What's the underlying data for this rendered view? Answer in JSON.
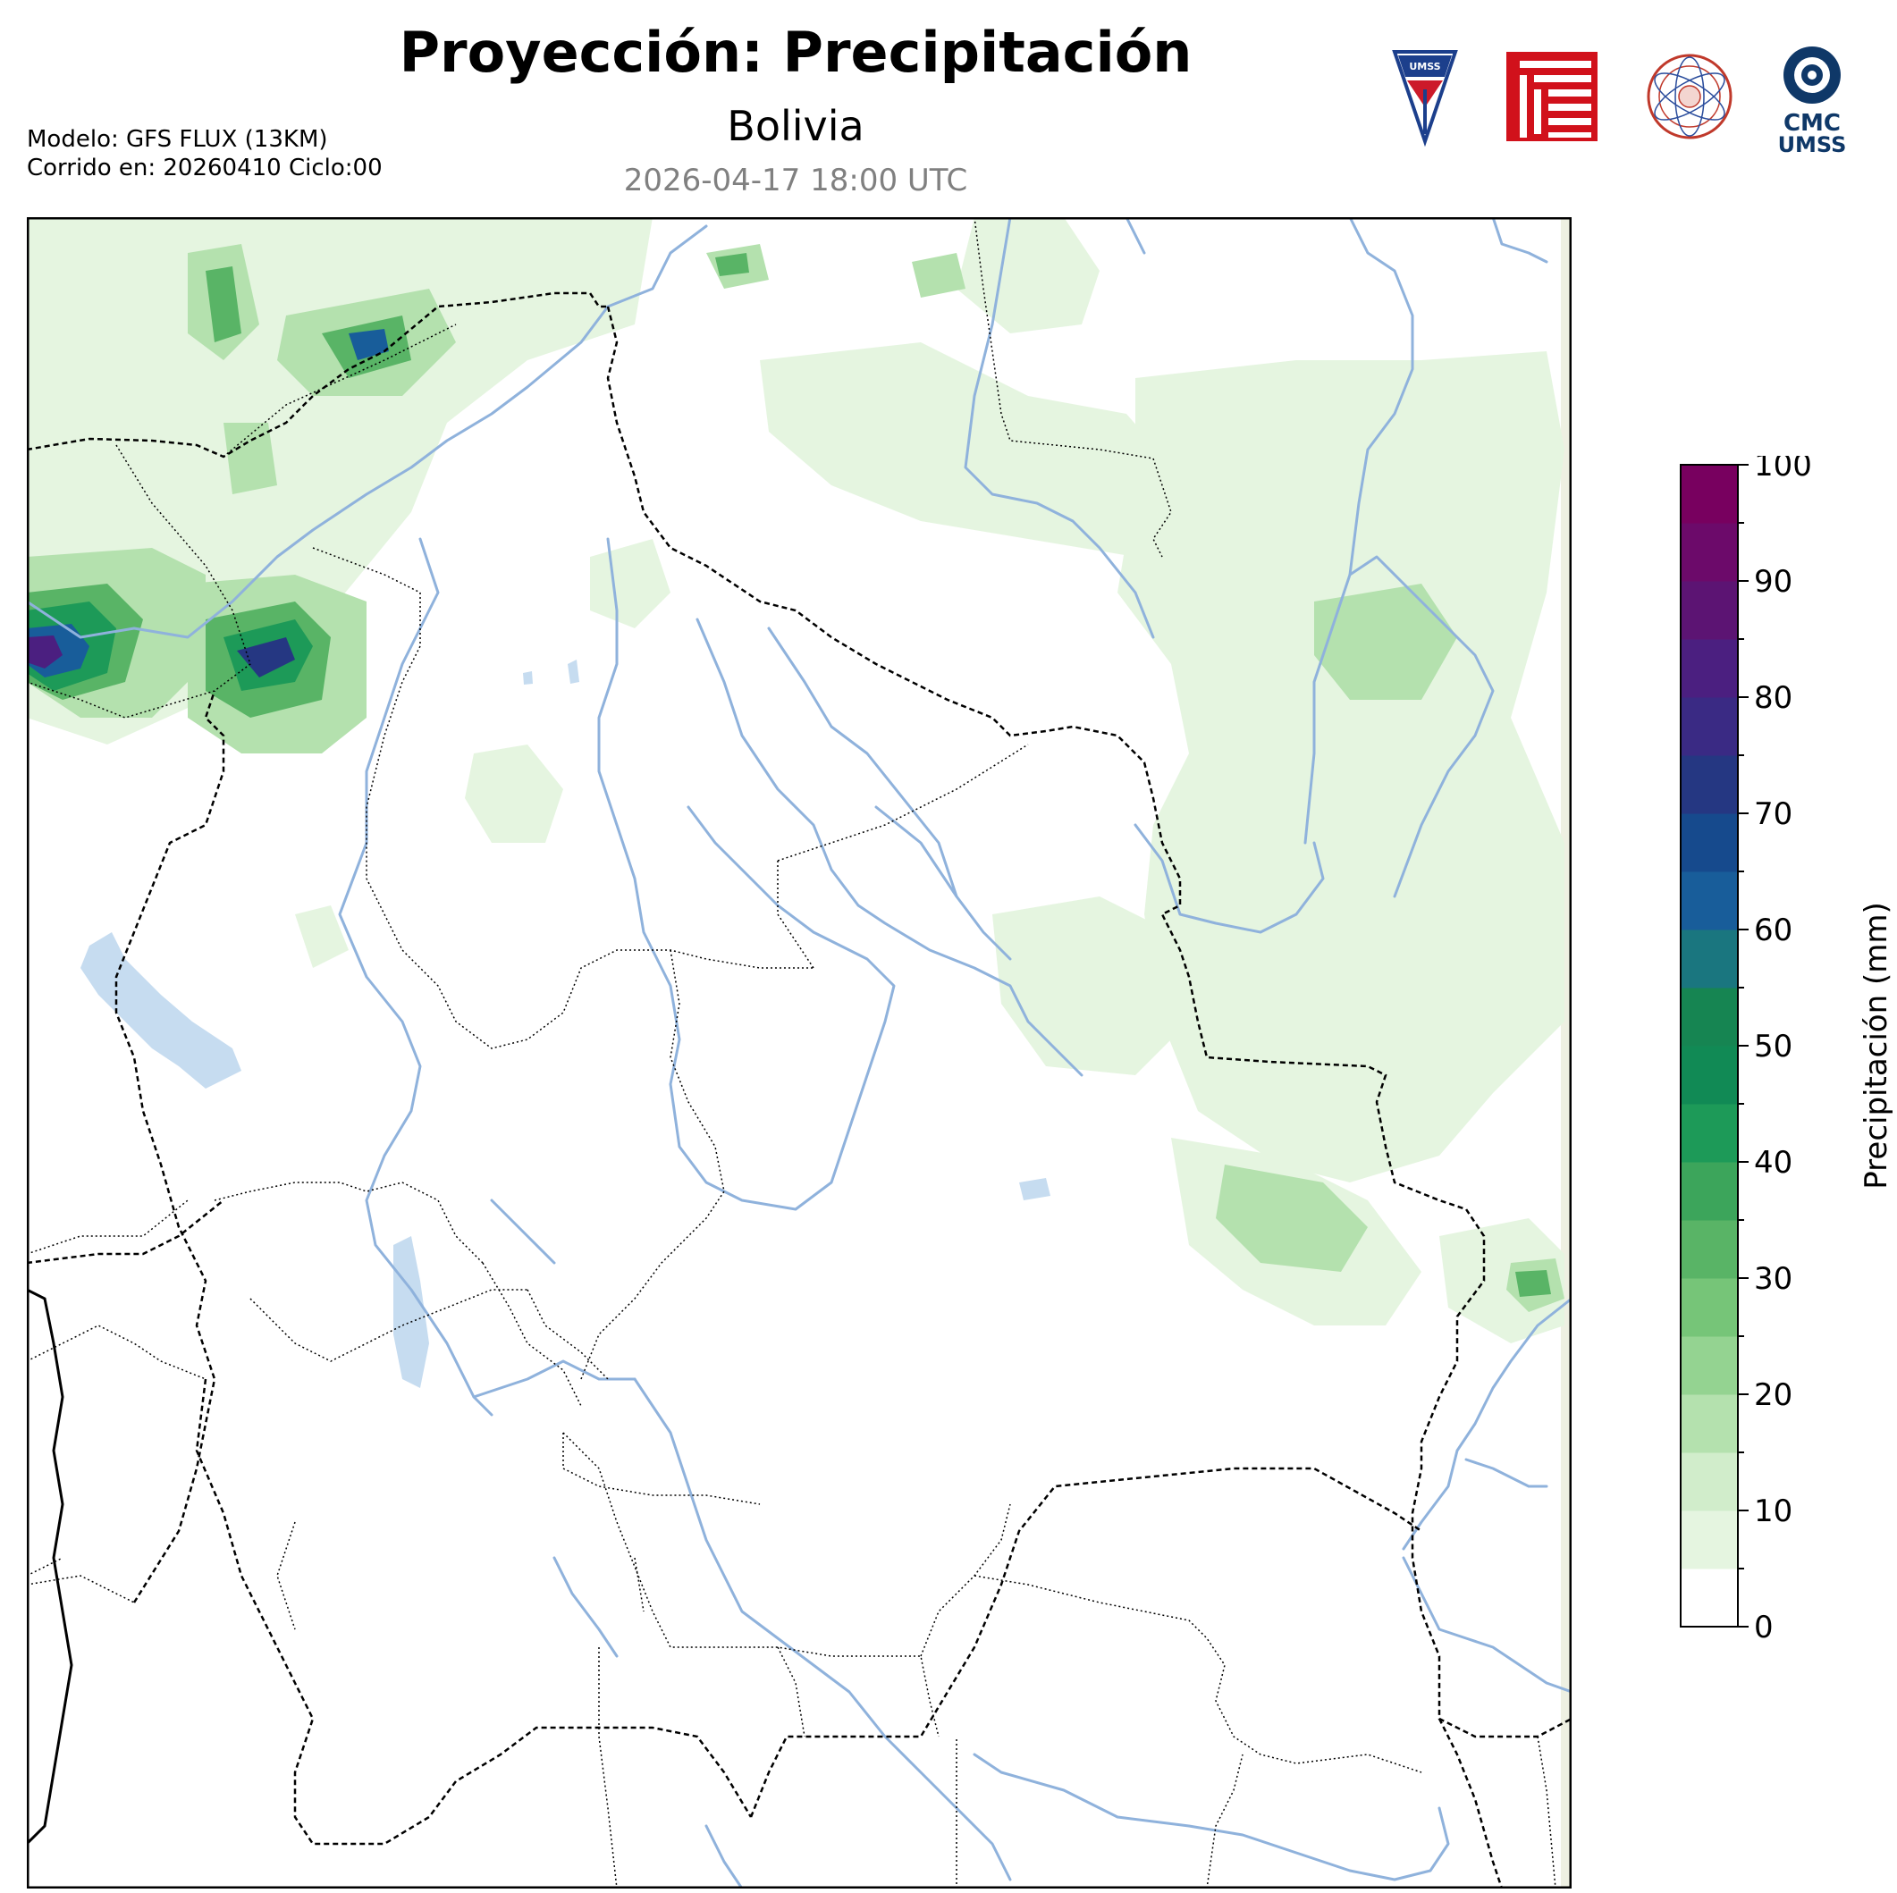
{
  "header": {
    "title": "Proyección: Precipitación",
    "subtitle": "Bolivia",
    "valid_time": "2026-04-17 18:00 UTC",
    "model_line": "Modelo: GFS FLUX (13KM)",
    "run_line": "Corrido en: 20260410 Ciclo:00"
  },
  "logos": {
    "umss_shield_text": "UMSS",
    "cmc_text_1": "CMC",
    "cmc_text_2": "UMSS"
  },
  "colorbar": {
    "label": "Precipitación (mm)",
    "ticks": [
      "0",
      "10",
      "20",
      "30",
      "40",
      "50",
      "60",
      "70",
      "80",
      "90",
      "100"
    ],
    "colors": [
      "#ffffff",
      "#e5f5e0",
      "#d1edcb",
      "#b4e1ae",
      "#94d391",
      "#76c578",
      "#59b466",
      "#3ca55b",
      "#1d9a58",
      "#118a55",
      "#168552",
      "#1a767f",
      "#185d9a",
      "#164a8d",
      "#253782",
      "#3a2a84",
      "#4b1f80",
      "#5c1473",
      "#6c0a6a",
      "#78005f"
    ]
  },
  "map": {
    "ocean_color": "#ffffff",
    "river_color": "#8fb2dc",
    "lake_color": "#c6dcf0",
    "border_color": "#000000"
  }
}
